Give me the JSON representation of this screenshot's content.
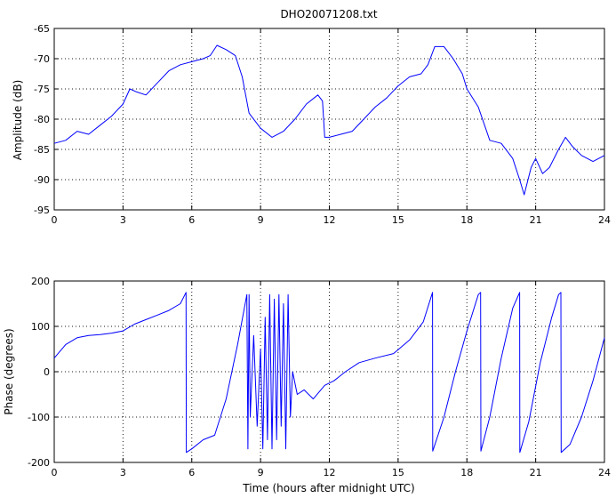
{
  "chart_data": [
    {
      "type": "line",
      "title": "DHO20071208.txt",
      "xlabel": "",
      "ylabel": "Amplitude (dB)",
      "xlim": [
        0,
        24
      ],
      "ylim": [
        -95,
        -65
      ],
      "xticks": [
        0,
        3,
        6,
        9,
        12,
        15,
        18,
        21,
        24
      ],
      "yticks": [
        -95,
        -90,
        -85,
        -80,
        -75,
        -70,
        -65
      ],
      "grid": true,
      "line_color": "#0000ff",
      "series": [
        {
          "x": [
            0,
            0.5,
            1,
            1.5,
            2,
            2.5,
            3,
            3.3,
            3.6,
            4,
            4.5,
            5,
            5.5,
            6,
            6.5,
            6.8,
            7.1,
            7.5,
            7.9,
            8.2,
            8.5,
            9,
            9.5,
            10,
            10.5,
            11,
            11.5,
            11.7,
            11.8,
            12,
            12.5,
            13,
            13.5,
            14,
            14.5,
            15,
            15.5,
            16,
            16.3,
            16.6,
            17,
            17.4,
            17.8,
            18,
            18.5,
            19,
            19.5,
            20,
            20.3,
            20.5,
            20.8,
            21,
            21.3,
            21.6,
            22,
            22.3,
            22.6,
            23,
            23.5,
            24
          ],
          "y": [
            -84,
            -83.5,
            -82,
            -82.5,
            -81,
            -79.5,
            -77.5,
            -75,
            -75.5,
            -76,
            -74,
            -72,
            -71,
            -70.5,
            -70,
            -69.5,
            -67.8,
            -68.5,
            -69.5,
            -73,
            -79,
            -81.5,
            -83,
            -82,
            -80,
            -77.5,
            -76,
            -77,
            -83,
            -83,
            -82.5,
            -82,
            -80,
            -78,
            -76.5,
            -74.5,
            -73,
            -72.5,
            -71,
            -68,
            -68,
            -70,
            -72.5,
            -75,
            -78,
            -83.5,
            -84,
            -86.5,
            -90,
            -92.5,
            -88,
            -86.5,
            -89,
            -88,
            -85,
            -83,
            -84.5,
            -86,
            -87,
            -86
          ]
        }
      ]
    },
    {
      "type": "line",
      "title": "",
      "xlabel": "Time (hours after midnight UTC)",
      "ylabel": "Phase (degrees)",
      "xlim": [
        0,
        24
      ],
      "ylim": [
        -200,
        200
      ],
      "xticks": [
        0,
        3,
        6,
        9,
        12,
        15,
        18,
        21,
        24
      ],
      "yticks": [
        -200,
        -100,
        0,
        100,
        200
      ],
      "grid": true,
      "line_color": "#0000ff",
      "series": [
        {
          "x": [
            0,
            0.5,
            1,
            1.5,
            2,
            2.5,
            3,
            3.5,
            4,
            4.5,
            5,
            5.5,
            5.75,
            5.76,
            6,
            6.5,
            7,
            7.5,
            8,
            8.4,
            8.45,
            8.5,
            8.55,
            8.7,
            8.85,
            9,
            9.1,
            9.2,
            9.3,
            9.4,
            9.5,
            9.6,
            9.7,
            9.8,
            9.9,
            10,
            10.1,
            10.2,
            10.3,
            10.4,
            10.6,
            10.9,
            11.3,
            11.8,
            12.2,
            12.7,
            13.3,
            14,
            14.8,
            15.5,
            16.1,
            16.5,
            16.51,
            17,
            17.5,
            18,
            18.5,
            18.6,
            18.61,
            19,
            19.5,
            20,
            20.3,
            20.31,
            20.7,
            21.2,
            21.7,
            22,
            22.1,
            22.11,
            22.5,
            23,
            23.5,
            24
          ],
          "y": [
            30,
            60,
            75,
            80,
            82,
            85,
            90,
            105,
            115,
            125,
            135,
            150,
            175,
            -178,
            -170,
            -150,
            -140,
            -60,
            60,
            170,
            -170,
            170,
            -100,
            80,
            -120,
            50,
            -170,
            120,
            -150,
            170,
            -170,
            160,
            -150,
            170,
            -120,
            150,
            -170,
            170,
            -100,
            0,
            -50,
            -40,
            -60,
            -30,
            -20,
            0,
            20,
            30,
            40,
            70,
            110,
            175,
            -175,
            -100,
            0,
            90,
            170,
            175,
            -175,
            -100,
            30,
            140,
            175,
            -178,
            -110,
            20,
            120,
            170,
            175,
            -178,
            -160,
            -100,
            -20,
            75
          ]
        }
      ]
    }
  ]
}
